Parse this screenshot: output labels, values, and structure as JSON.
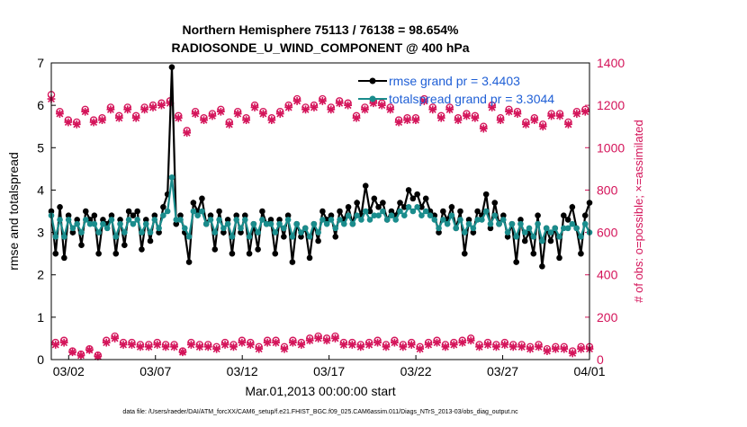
{
  "title_line1": "Northern Hemisphere 75113 / 76138 = 98.654%",
  "title_line2": "RADIOSONDE_U_WIND_COMPONENT @ 400 hPa",
  "xlabel": "Mar.01,2013 00:00:00 start",
  "footer": "data file: /Users/raeder/DAI/ATM_forcXX/CAM6_setup/f.e21.FHIST_BGC.f09_025.CAM6assim.011/Diags_NTrS_2013-03/obs_diag_output.nc",
  "colors": {
    "rmse": "#000000",
    "spread": "#1a8c8c",
    "obs": "#d4145a",
    "legend_text": "#1f5fd6"
  },
  "chart_data": {
    "type": "line",
    "x_tick_labels": [
      "03/02",
      "03/07",
      "03/12",
      "03/17",
      "03/22",
      "03/27",
      "04/01"
    ],
    "x_tick_days": [
      1,
      6,
      11,
      16,
      21,
      26,
      31
    ],
    "xlim": [
      0,
      31
    ],
    "ylabel": "rmse and totalspread",
    "ylim": [
      0,
      7
    ],
    "y_ticks": [
      "0",
      "1",
      "2",
      "3",
      "4",
      "5",
      "6",
      "7"
    ],
    "y2label": "# of obs: o=possible; ×=assimilated",
    "y2lim": [
      0,
      1400
    ],
    "y2_ticks": [
      "0",
      "200",
      "400",
      "600",
      "800",
      "1000",
      "1200",
      "1400"
    ],
    "legend_position": "top-right",
    "series": [
      {
        "name": "rmse grand pr = 3.4403",
        "axis": "left",
        "marker": "dot",
        "values": [
          3.5,
          2.5,
          3.6,
          2.4,
          3.4,
          3.0,
          3.3,
          2.7,
          3.5,
          3.3,
          3.4,
          2.5,
          3.3,
          3.2,
          3.4,
          2.5,
          3.3,
          2.7,
          3.5,
          3.4,
          3.5,
          2.6,
          3.3,
          2.8,
          3.4,
          3.0,
          3.6,
          3.9,
          6.9,
          3.2,
          3.4,
          3.0,
          2.3,
          3.7,
          3.5,
          3.8,
          3.2,
          3.4,
          2.6,
          3.5,
          3.0,
          3.3,
          2.5,
          3.4,
          3.0,
          3.4,
          2.5,
          3.2,
          2.6,
          3.5,
          3.2,
          3.3,
          2.5,
          3.3,
          2.9,
          3.4,
          2.3,
          3.2,
          2.9,
          3.1,
          2.4,
          3.2,
          2.8,
          3.5,
          3.3,
          3.4,
          2.9,
          3.5,
          3.3,
          3.6,
          3.2,
          3.7,
          3.4,
          4.1,
          3.5,
          3.8,
          3.6,
          3.7,
          3.3,
          3.5,
          3.4,
          3.7,
          3.6,
          4.0,
          3.8,
          3.9,
          3.6,
          3.8,
          3.5,
          3.4,
          3.0,
          3.5,
          3.3,
          3.6,
          3.1,
          3.5,
          2.5,
          3.3,
          3.0,
          3.5,
          3.4,
          3.9,
          3.1,
          3.7,
          3.2,
          3.4,
          2.9,
          3.2,
          2.3,
          3.3,
          2.8,
          3.0,
          2.5,
          3.4,
          2.2,
          3.1,
          2.8,
          3.1,
          2.4,
          3.4,
          3.3,
          3.6,
          3.1,
          2.5,
          3.4,
          3.7
        ]
      },
      {
        "name": "totalspread grand pr = 3.3044",
        "axis": "left",
        "marker": "dot",
        "values": [
          3.4,
          2.9,
          3.3,
          2.9,
          3.3,
          3.1,
          3.2,
          3.0,
          3.3,
          3.2,
          3.2,
          3.0,
          3.2,
          3.1,
          3.3,
          2.9,
          3.2,
          3.0,
          3.3,
          3.2,
          3.3,
          3.0,
          3.2,
          3.0,
          3.3,
          3.1,
          3.4,
          3.5,
          4.3,
          3.3,
          3.3,
          3.1,
          2.9,
          3.5,
          3.4,
          3.5,
          3.2,
          3.3,
          3.0,
          3.3,
          3.1,
          3.2,
          2.9,
          3.3,
          3.1,
          3.3,
          2.9,
          3.2,
          3.0,
          3.3,
          3.2,
          3.2,
          3.0,
          3.2,
          3.1,
          3.3,
          2.9,
          3.2,
          3.0,
          3.1,
          2.9,
          3.2,
          3.0,
          3.3,
          3.2,
          3.3,
          3.1,
          3.3,
          3.2,
          3.4,
          3.2,
          3.4,
          3.3,
          3.5,
          3.3,
          3.4,
          3.4,
          3.5,
          3.3,
          3.4,
          3.3,
          3.5,
          3.4,
          3.6,
          3.5,
          3.6,
          3.4,
          3.5,
          3.4,
          3.3,
          3.1,
          3.3,
          3.2,
          3.4,
          3.1,
          3.3,
          3.0,
          3.2,
          3.1,
          3.3,
          3.3,
          3.5,
          3.2,
          3.4,
          3.2,
          3.3,
          3.0,
          3.2,
          2.9,
          3.2,
          3.0,
          3.1,
          2.9,
          3.2,
          2.8,
          3.1,
          3.0,
          3.1,
          2.9,
          3.1,
          3.1,
          3.2,
          3.1,
          2.9,
          3.2,
          3.0
        ]
      },
      {
        "name": "possible",
        "axis": "right",
        "marker": "o",
        "values": [
          1250,
          80,
          1170,
          90,
          1130,
          40,
          1120,
          25,
          1180,
          50,
          1130,
          20,
          1140,
          90,
          1190,
          110,
          1150,
          80,
          1190,
          80,
          1150,
          70,
          1190,
          70,
          1200,
          80,
          1210,
          70,
          1220,
          70,
          1150,
          40,
          1080,
          80,
          1170,
          70,
          1140,
          70,
          1160,
          60,
          1180,
          80,
          1120,
          70,
          1170,
          90,
          1140,
          80,
          1200,
          60,
          1170,
          90,
          1140,
          90,
          1170,
          60,
          1200,
          90,
          1230,
          80,
          1190,
          100,
          1200,
          110,
          1230,
          100,
          1190,
          110,
          1220,
          80,
          1210,
          80,
          1150,
          70,
          1190,
          80,
          1220,
          90,
          1210,
          70,
          1190,
          90,
          1130,
          70,
          1140,
          80,
          1140,
          60,
          1230,
          80,
          1190,
          90,
          1150,
          70,
          1190,
          80,
          1140,
          90,
          1160,
          100,
          1150,
          70,
          1100,
          80,
          1200,
          70,
          1140,
          80,
          1180,
          70,
          1170,
          70,
          1120,
          60,
          1140,
          70,
          1110,
          50,
          1160,
          60,
          1160,
          60,
          1120,
          40,
          1170,
          60,
          1180,
          60
        ]
      },
      {
        "name": "assimilated",
        "axis": "right",
        "marker": "x",
        "values": [
          1230,
          70,
          1160,
          80,
          1120,
          35,
          1110,
          20,
          1170,
          45,
          1120,
          15,
          1130,
          80,
          1180,
          100,
          1140,
          70,
          1180,
          70,
          1140,
          60,
          1180,
          60,
          1190,
          70,
          1200,
          60,
          1210,
          60,
          1140,
          35,
          1070,
          70,
          1160,
          60,
          1130,
          60,
          1150,
          50,
          1170,
          70,
          1110,
          60,
          1160,
          80,
          1130,
          70,
          1190,
          50,
          1160,
          80,
          1130,
          80,
          1160,
          50,
          1190,
          80,
          1220,
          70,
          1180,
          90,
          1190,
          100,
          1220,
          90,
          1180,
          100,
          1210,
          70,
          1200,
          70,
          1140,
          60,
          1180,
          70,
          1210,
          80,
          1200,
          60,
          1180,
          80,
          1120,
          60,
          1130,
          70,
          1130,
          50,
          1220,
          70,
          1180,
          80,
          1140,
          60,
          1180,
          70,
          1130,
          80,
          1150,
          90,
          1140,
          60,
          1090,
          70,
          1190,
          60,
          1130,
          70,
          1170,
          60,
          1160,
          60,
          1110,
          50,
          1130,
          60,
          1100,
          40,
          1150,
          50,
          1150,
          50,
          1110,
          30,
          1160,
          50,
          1170,
          50
        ]
      }
    ]
  }
}
